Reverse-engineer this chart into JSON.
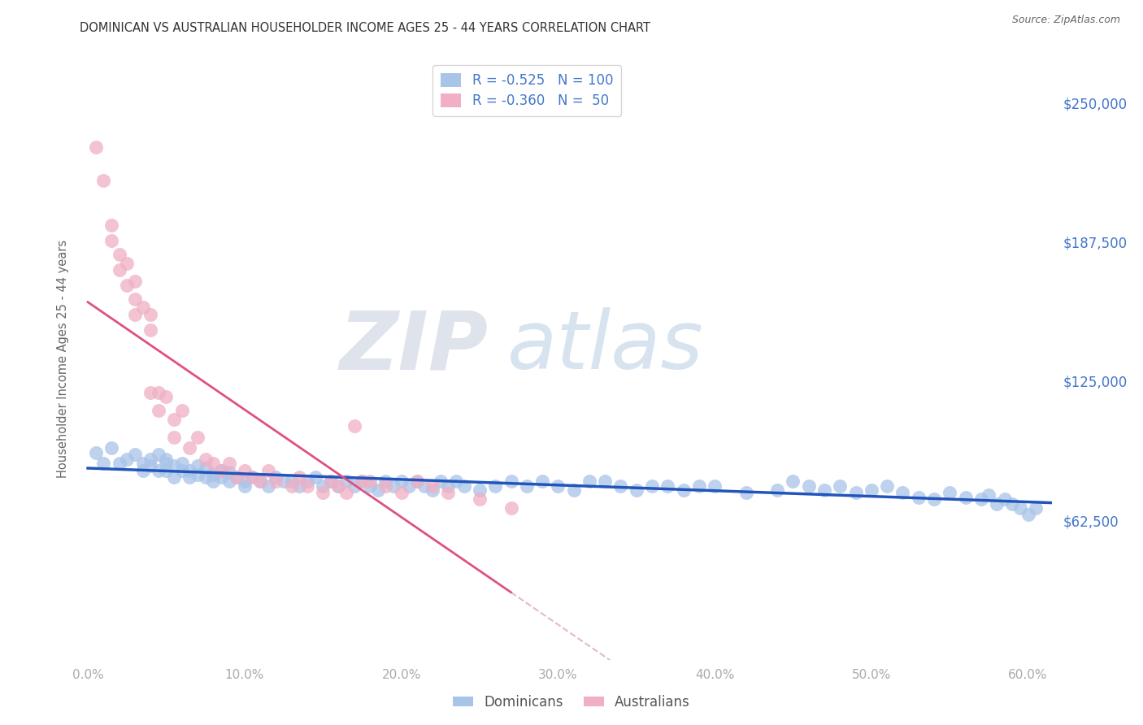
{
  "title": "DOMINICAN VS AUSTRALIAN HOUSEHOLDER INCOME AGES 25 - 44 YEARS CORRELATION CHART",
  "source": "Source: ZipAtlas.com",
  "xlabel_ticks": [
    "0.0%",
    "10.0%",
    "20.0%",
    "30.0%",
    "40.0%",
    "50.0%",
    "60.0%"
  ],
  "xlabel_vals": [
    0.0,
    0.1,
    0.2,
    0.3,
    0.4,
    0.5,
    0.6
  ],
  "ylabel_ticks": [
    "$62,500",
    "$125,000",
    "$187,500",
    "$250,000"
  ],
  "ylabel_vals": [
    62500,
    125000,
    187500,
    250000
  ],
  "ylim": [
    0,
    270000
  ],
  "xlim": [
    -0.005,
    0.615
  ],
  "watermark_zip": "ZIP",
  "watermark_atlas": "atlas",
  "legend_dominicans_R": "-0.525",
  "legend_dominicans_N": "100",
  "legend_australians_R": "-0.360",
  "legend_australians_N": " 50",
  "ylabel": "Householder Income Ages 25 - 44 years",
  "dot_color_dominicans": "#a8c4e8",
  "dot_color_australians": "#f0afc4",
  "line_color_dominicans": "#2255bb",
  "line_color_australians": "#e05080",
  "line_color_australians_ext": "#e8b8c8",
  "title_color": "#333333",
  "axis_label_color": "#4477cc",
  "tick_color": "#aaaaaa",
  "grid_color": "#cccccc",
  "dominicans_x": [
    0.005,
    0.01,
    0.015,
    0.02,
    0.025,
    0.03,
    0.035,
    0.035,
    0.04,
    0.04,
    0.045,
    0.045,
    0.05,
    0.05,
    0.05,
    0.055,
    0.055,
    0.06,
    0.06,
    0.065,
    0.065,
    0.07,
    0.07,
    0.075,
    0.075,
    0.08,
    0.08,
    0.085,
    0.085,
    0.09,
    0.09,
    0.095,
    0.1,
    0.1,
    0.105,
    0.11,
    0.115,
    0.12,
    0.125,
    0.13,
    0.135,
    0.14,
    0.145,
    0.15,
    0.155,
    0.16,
    0.165,
    0.17,
    0.175,
    0.18,
    0.185,
    0.19,
    0.195,
    0.2,
    0.205,
    0.21,
    0.215,
    0.22,
    0.225,
    0.23,
    0.235,
    0.24,
    0.25,
    0.26,
    0.27,
    0.28,
    0.29,
    0.3,
    0.31,
    0.32,
    0.33,
    0.34,
    0.35,
    0.36,
    0.37,
    0.38,
    0.39,
    0.4,
    0.42,
    0.44,
    0.45,
    0.46,
    0.47,
    0.48,
    0.49,
    0.5,
    0.51,
    0.52,
    0.53,
    0.54,
    0.55,
    0.56,
    0.57,
    0.575,
    0.58,
    0.585,
    0.59,
    0.595,
    0.6,
    0.605
  ],
  "dominicans_y": [
    93000,
    88000,
    95000,
    88000,
    90000,
    92000,
    88000,
    85000,
    90000,
    87000,
    92000,
    85000,
    90000,
    88000,
    85000,
    87000,
    82000,
    88000,
    85000,
    85000,
    82000,
    87000,
    83000,
    86000,
    82000,
    83000,
    80000,
    85000,
    82000,
    84000,
    80000,
    82000,
    80000,
    78000,
    82000,
    80000,
    78000,
    82000,
    80000,
    80000,
    78000,
    80000,
    82000,
    78000,
    80000,
    78000,
    80000,
    78000,
    80000,
    78000,
    76000,
    80000,
    78000,
    80000,
    78000,
    80000,
    78000,
    76000,
    80000,
    78000,
    80000,
    78000,
    76000,
    78000,
    80000,
    78000,
    80000,
    78000,
    76000,
    80000,
    80000,
    78000,
    76000,
    78000,
    78000,
    76000,
    78000,
    78000,
    75000,
    76000,
    80000,
    78000,
    76000,
    78000,
    75000,
    76000,
    78000,
    75000,
    73000,
    72000,
    75000,
    73000,
    72000,
    74000,
    70000,
    72000,
    70000,
    68000,
    65000,
    68000
  ],
  "australians_x": [
    0.005,
    0.01,
    0.015,
    0.015,
    0.02,
    0.02,
    0.025,
    0.025,
    0.03,
    0.03,
    0.03,
    0.035,
    0.04,
    0.04,
    0.04,
    0.045,
    0.045,
    0.05,
    0.055,
    0.055,
    0.06,
    0.065,
    0.07,
    0.075,
    0.08,
    0.085,
    0.09,
    0.095,
    0.1,
    0.105,
    0.11,
    0.115,
    0.12,
    0.13,
    0.135,
    0.14,
    0.15,
    0.155,
    0.16,
    0.165,
    0.17,
    0.175,
    0.18,
    0.19,
    0.2,
    0.21,
    0.22,
    0.23,
    0.25,
    0.27
  ],
  "australians_y": [
    230000,
    215000,
    195000,
    188000,
    182000,
    175000,
    178000,
    168000,
    170000,
    162000,
    155000,
    158000,
    155000,
    148000,
    120000,
    120000,
    112000,
    118000,
    108000,
    100000,
    112000,
    95000,
    100000,
    90000,
    88000,
    85000,
    88000,
    82000,
    85000,
    82000,
    80000,
    85000,
    80000,
    78000,
    82000,
    78000,
    75000,
    80000,
    78000,
    75000,
    105000,
    80000,
    80000,
    78000,
    75000,
    80000,
    78000,
    75000,
    72000,
    68000
  ]
}
